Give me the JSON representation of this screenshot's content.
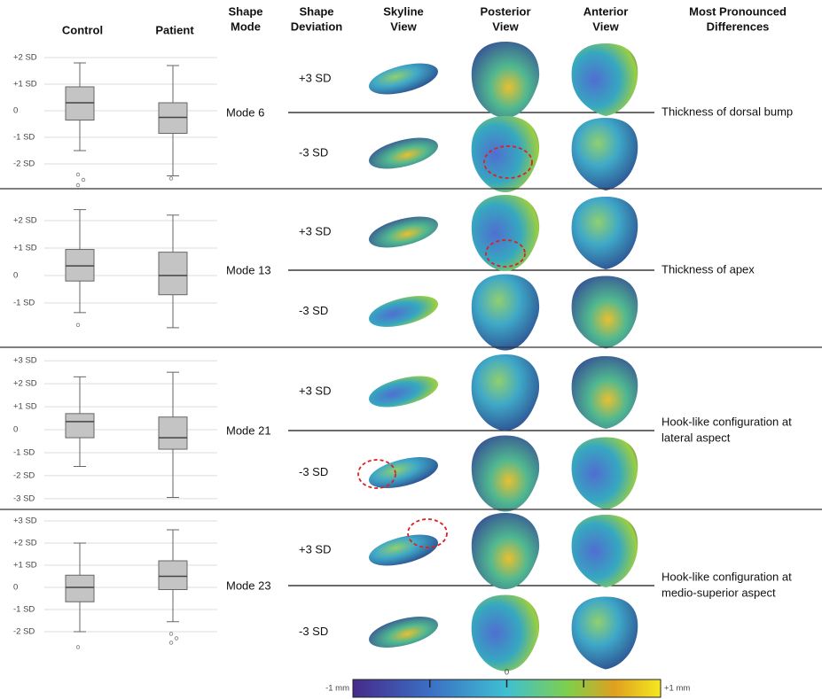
{
  "headers": {
    "control": [
      "Control"
    ],
    "patient": [
      "Patient"
    ],
    "mode": [
      "Shape",
      "Mode"
    ],
    "deviation": [
      "Shape",
      "Deviation"
    ],
    "skyline": [
      "Skyline",
      "View"
    ],
    "posterior": [
      "Posterior",
      "View"
    ],
    "anterior": [
      "Anterior",
      "View"
    ],
    "differences": [
      "Most Pronounced",
      "Differences"
    ]
  },
  "rows": [
    {
      "mode": "Mode 6",
      "deviations": [
        "+3 SD",
        "-3 SD"
      ],
      "difference": [
        "Thickness of dorsal bump"
      ],
      "boxplot": {
        "type": "box",
        "ylim": [
          -2.9,
          2.4
        ],
        "yticks": [
          {
            "value": 2,
            "label": "+2 SD"
          },
          {
            "value": 1,
            "label": "+1 SD"
          },
          0,
          {
            "value": -1,
            "label": "-1 SD"
          },
          {
            "value": -2,
            "label": "-2 SD"
          }
        ],
        "boxes": [
          {
            "min": -1.5,
            "q1": -0.35,
            "median": 0.3,
            "q3": 0.9,
            "max": 1.8,
            "outliers": [
              -2.4,
              -2.6,
              -2.8
            ]
          },
          {
            "min": -2.45,
            "q1": -0.85,
            "median": -0.25,
            "q3": 0.3,
            "max": 1.7,
            "outliers": [
              -2.55
            ]
          }
        ]
      }
    },
    {
      "mode": "Mode 13",
      "deviations": [
        "+3 SD",
        "-3 SD"
      ],
      "difference": [
        "Thickness of apex"
      ],
      "boxplot": {
        "type": "box",
        "ylim": [
          -2.0,
          2.5
        ],
        "yticks": [
          {
            "value": 2,
            "label": "+2 SD"
          },
          {
            "value": 1,
            "label": "+1 SD"
          },
          0,
          {
            "value": -1,
            "label": "-1 SD"
          }
        ],
        "boxes": [
          {
            "min": -1.35,
            "q1": -0.2,
            "median": 0.35,
            "q3": 0.95,
            "max": 2.4,
            "outliers": [
              -1.8
            ]
          },
          {
            "min": -1.9,
            "q1": -0.7,
            "median": 0.0,
            "q3": 0.85,
            "max": 2.2,
            "outliers": []
          }
        ]
      }
    },
    {
      "mode": "Mode 21",
      "deviations": [
        "+3 SD",
        "-3 SD"
      ],
      "difference": [
        "Hook-like configuration at",
        "lateral aspect"
      ],
      "boxplot": {
        "type": "box",
        "ylim": [
          -3.2,
          3.2
        ],
        "yticks": [
          {
            "value": 3,
            "label": "+3 SD"
          },
          {
            "value": 2,
            "label": "+2 SD"
          },
          {
            "value": 1,
            "label": "+1 SD"
          },
          0,
          {
            "value": -1,
            "label": "-1 SD"
          },
          {
            "value": -2,
            "label": "-2 SD"
          },
          {
            "value": -3,
            "label": "-3 SD"
          }
        ],
        "boxes": [
          {
            "min": -1.6,
            "q1": -0.35,
            "median": 0.35,
            "q3": 0.7,
            "max": 2.3,
            "outliers": []
          },
          {
            "min": -2.95,
            "q1": -0.85,
            "median": -0.35,
            "q3": 0.55,
            "max": 2.5,
            "outliers": []
          }
        ]
      }
    },
    {
      "mode": "Mode 23",
      "deviations": [
        "+3 SD",
        "-3 SD"
      ],
      "difference": [
        "Hook-like configuration at",
        "medio-superior aspect"
      ],
      "boxplot": {
        "type": "box",
        "ylim": [
          -2.8,
          3.2
        ],
        "yticks": [
          {
            "value": 3,
            "label": "+3 SD"
          },
          {
            "value": 2,
            "label": "+2 SD"
          },
          {
            "value": 1,
            "label": "+1 SD"
          },
          0,
          {
            "value": -1,
            "label": "-1 SD"
          },
          {
            "value": -2,
            "label": "-2 SD"
          }
        ],
        "boxes": [
          {
            "min": -2.0,
            "q1": -0.65,
            "median": 0.0,
            "q3": 0.55,
            "max": 2.0,
            "outliers": [
              -2.7
            ]
          },
          {
            "min": -1.55,
            "q1": -0.1,
            "median": 0.5,
            "q3": 1.2,
            "max": 2.6,
            "outliers": [
              -2.1,
              -2.3,
              -2.5
            ]
          }
        ]
      }
    }
  ],
  "colorbar": {
    "lim": [
      -1,
      1
    ],
    "ticks": [
      {
        "value": -1,
        "label": "-1 mm"
      },
      0,
      {
        "value": 1,
        "label": "+1 mm"
      }
    ],
    "minor_ticks": [
      -0.5,
      0.5
    ]
  }
}
